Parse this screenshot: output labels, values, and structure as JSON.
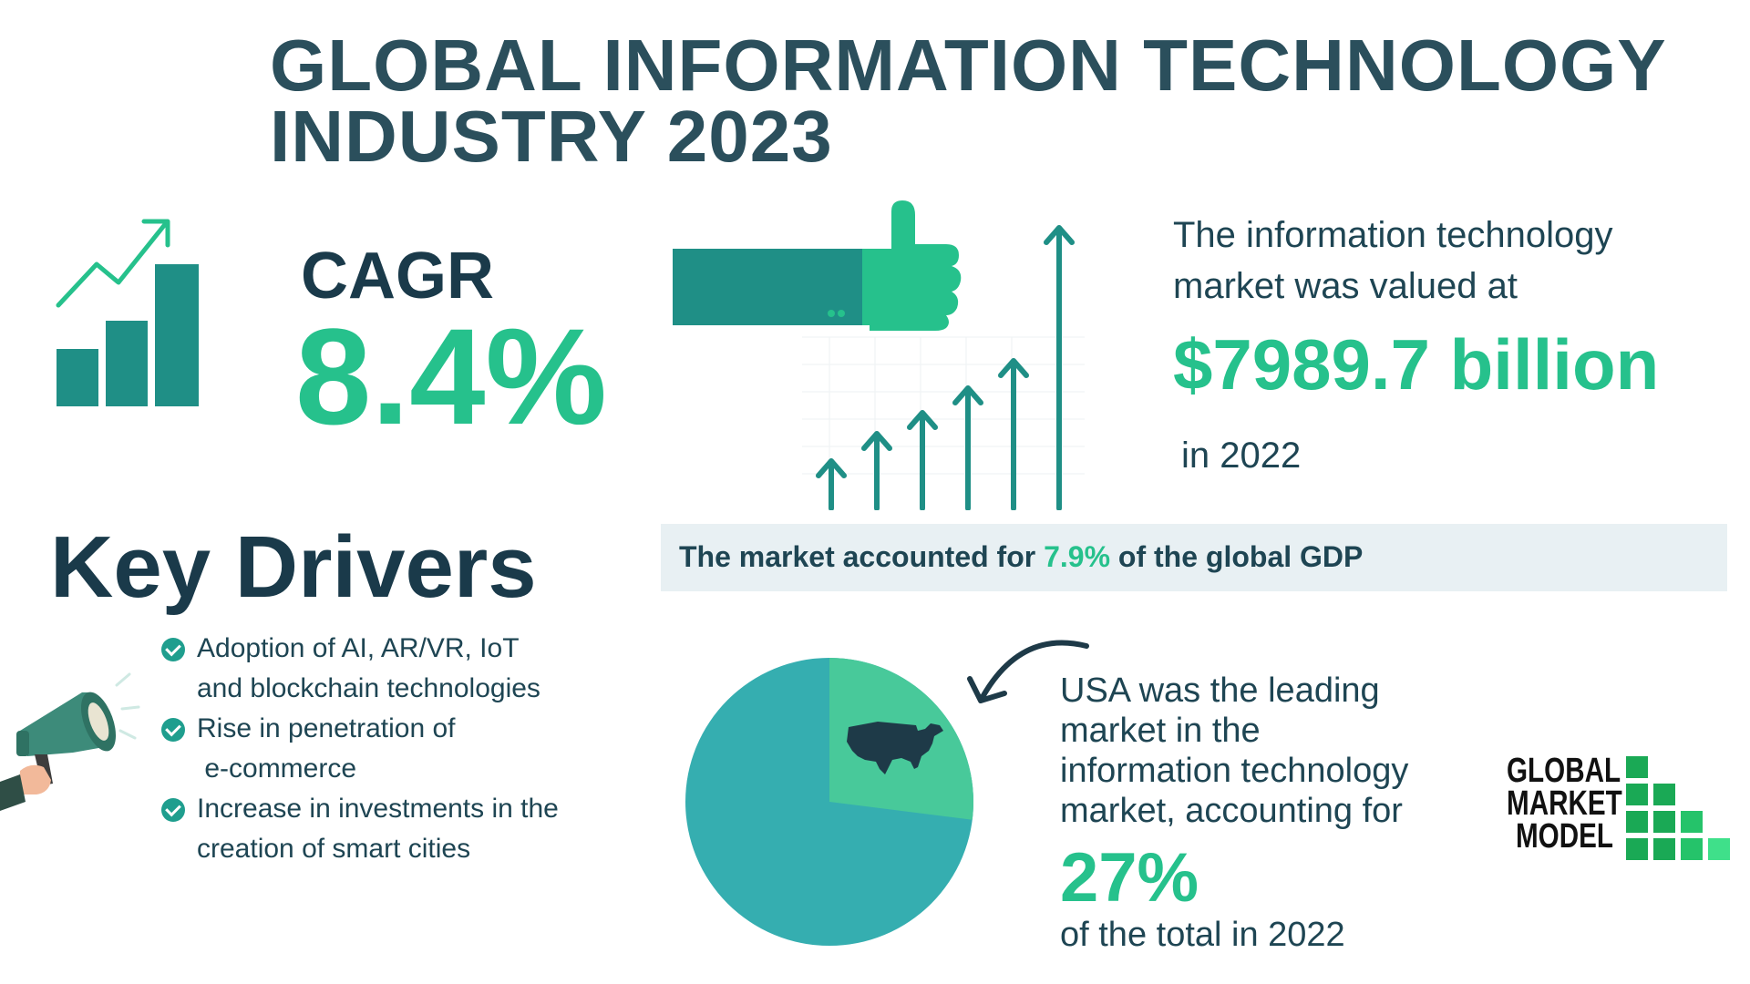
{
  "title": {
    "line1": "GLOBAL INFORMATION TECHNOLOGY",
    "line2": "INDUSTRY 2023"
  },
  "cagr": {
    "label": "CAGR",
    "value": "8.4%"
  },
  "market_value": {
    "line1": "The information technology",
    "line2": "market was valued at",
    "amount": "$7989.7 billion",
    "year": "in 2022"
  },
  "gdp": {
    "before": "The market accounted for ",
    "percent": "7.9%",
    "after": " of the global GDP"
  },
  "key_drivers": {
    "title": "Key Drivers",
    "items": [
      {
        "line1": "Adoption of AI, AR/VR, IoT",
        "line2": "and blockchain technologies"
      },
      {
        "line1": "Rise in penetration of",
        "line2": " e-commerce"
      },
      {
        "line1": "Increase in investments in the",
        "line2": "creation of smart cities"
      }
    ]
  },
  "usa": {
    "line1": "USA was the leading",
    "line2": "market in the",
    "line3": "information technology",
    "line4": "market, accounting for",
    "percent": "27%",
    "tail": "of the total in 2022",
    "share": 0.27
  },
  "logo": {
    "line1": "GLOBAL",
    "line2": "MARKET",
    "line3": "MODEL"
  },
  "icons": {
    "growth": "bar-chart-arrow-icon",
    "thumbs": "thumbs-up-icon",
    "arrows": "rising-arrows-icon",
    "megaphone": "megaphone-icon",
    "check": "check-circle-icon",
    "map": "usa-map-icon",
    "curved_arrow": "curved-arrow-icon"
  },
  "colors": {
    "title": "#2b4f5c",
    "accent_green": "#26c18c",
    "teal": "#1f9e8e",
    "pie_main": "#35aeb0",
    "pie_usa": "#48c99a",
    "band": "#e8f0f3"
  }
}
